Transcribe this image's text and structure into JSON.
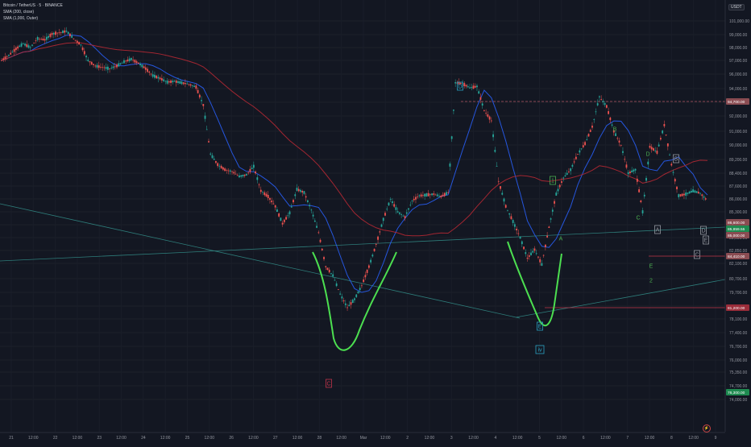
{
  "header": {
    "symbol": "Bitcoin / TetherUS · 5 · BINANCE",
    "indicator1": "SMA (200, close)",
    "indicator2": "SMA (1,000, Outer)"
  },
  "currency": "USDT",
  "chart_data": {
    "type": "line",
    "title": "Bitcoin / TetherUS · 5 · BINANCE",
    "y_axis_labels": [
      "101,000.00",
      "99,000.00",
      "98,000.00",
      "97,000.00",
      "96,000.00",
      "94,000.00",
      "93,000.00",
      "92,000.00",
      "91,000.00",
      "90,000.00",
      "89,200.00",
      "88,400.00",
      "87,600.00",
      "86,000.00",
      "85,300.00",
      "84,100.00",
      "83,600.00",
      "82,850.00",
      "82,100.00",
      "80,700.00",
      "79,700.00",
      "78,900.00",
      "78,100.00",
      "77,400.00",
      "76,700.00",
      "76,000.00",
      "75,350.00",
      "74,700.00",
      "74,000.00"
    ],
    "price_tags": [
      {
        "label": "94,700.00",
        "color": "#8a4c52"
      },
      {
        "label": "86,600.00",
        "color": "#8a4c52"
      },
      {
        "label": "85,859.55",
        "color": "#1e8a50"
      },
      {
        "label": "85,000.00",
        "color": "#8a4c52"
      },
      {
        "label": "84,410.00",
        "color": "#8a4c52"
      },
      {
        "label": "81,200.00",
        "color": "#9a2d3a"
      },
      {
        "label": "76,300.00",
        "color": "#1e8a50"
      }
    ],
    "x_axis_labels": [
      "21",
      "12:00",
      "22",
      "12:00",
      "23",
      "12:00",
      "24",
      "12:00",
      "25",
      "12:00",
      "26",
      "12:00",
      "27",
      "12:00",
      "28",
      "12:00",
      "Mar",
      "12:00",
      "2",
      "12:00",
      "3",
      "12:00",
      "4",
      "12:00",
      "5",
      "12:00",
      "6",
      "12:00",
      "7",
      "12:00",
      "8",
      "12:00",
      "9"
    ],
    "annotations": [
      {
        "text": "D",
        "color": "#2aa3c2",
        "style": "boxed"
      },
      {
        "text": "C",
        "color": "#c0344a",
        "style": "boxed"
      },
      {
        "text": "iv",
        "color": "#2aa3c2",
        "style": "boxed"
      },
      {
        "text": "E",
        "color": "#2aa3c2",
        "style": "boxed"
      },
      {
        "text": "1",
        "color": "#4caf50",
        "style": "boxed"
      },
      {
        "text": "A",
        "color": "#4caf50",
        "style": "plain"
      },
      {
        "text": "B",
        "color": "#4caf50",
        "style": "plain"
      },
      {
        "text": "C",
        "color": "#4caf50",
        "style": "plain"
      },
      {
        "text": "D",
        "color": "#4caf50",
        "style": "plain"
      },
      {
        "text": "E",
        "color": "#4caf50",
        "style": "plain"
      },
      {
        "text": "2",
        "color": "#4caf50",
        "style": "plain"
      },
      {
        "text": "A",
        "color": "#9598a1",
        "style": "boxed"
      },
      {
        "text": "B",
        "color": "#9598a1",
        "style": "boxed"
      },
      {
        "text": "C",
        "color": "#9598a1",
        "style": "boxed"
      },
      {
        "text": "D",
        "color": "#9598a1",
        "style": "boxed"
      },
      {
        "text": "E",
        "color": "#9598a1",
        "style": "boxed"
      }
    ],
    "series": [
      {
        "values": [
          97000,
          97400,
          97900,
          98300,
          98000,
          98700,
          98600,
          99100,
          99300,
          99500,
          98700,
          98200,
          97000,
          96600,
          96500,
          96400,
          96600,
          96900,
          97100,
          96800,
          96400,
          95800,
          95400,
          94900,
          95000,
          94800,
          94600,
          94200,
          92800,
          89500,
          88900,
          88600,
          88500,
          88200,
          88300,
          88800,
          87000,
          86300,
          85600,
          84200,
          85200,
          87200,
          86800,
          85400,
          83800,
          81800,
          81000,
          79600,
          78800,
          79300,
          80200,
          81800,
          83200,
          84600,
          86000,
          85300,
          84800,
          85900,
          86400,
          86500,
          86600,
          86300,
          86800,
          94800,
          94700,
          94100,
          94300,
          92400,
          91700,
          87900,
          85600,
          84400,
          83600,
          82400,
          82900,
          82000,
          84000,
          86600,
          88100,
          88600,
          89500,
          90100,
          91300,
          93400,
          92700,
          91000,
          90000,
          88400,
          88600,
          85300,
          89900,
          89600,
          91400,
          88900,
          86400,
          86600,
          87000,
          86700,
          85900
        ]
      }
    ],
    "grid": true,
    "legend": "top-left"
  }
}
